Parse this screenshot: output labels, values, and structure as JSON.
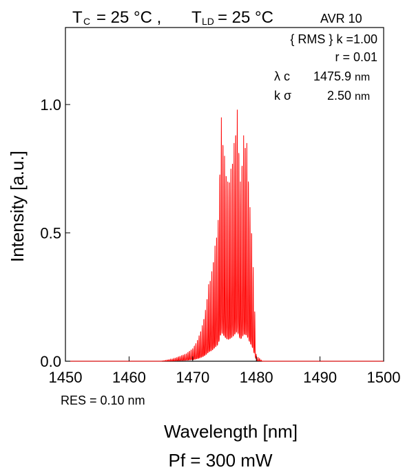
{
  "chart_data": {
    "type": "line",
    "header": {
      "tc_symbol": "T",
      "tc_sub": "C",
      "tc_value": "= 25 °C ,",
      "tld_symbol": "T",
      "tld_sub": "LD",
      "tld_value": "= 25 °C",
      "avr": "AVR 10"
    },
    "annotations": {
      "rms_k": "{ RMS } k =1.00",
      "r": "r = 0.01",
      "lambda_c_label": "λ c",
      "lambda_c_value": "1475.9",
      "lambda_c_unit": "nm",
      "k_sigma_label": "k σ",
      "k_sigma_value": "2.50",
      "k_sigma_unit": "nm",
      "res": "RES = 0.10 nm"
    },
    "xlabel": "Wavelength [nm]",
    "ylabel": "Intensity [a.u.]",
    "footer": "Pf = 300 mW",
    "xlim": [
      1450,
      1500
    ],
    "ylim": [
      0,
      1.3
    ],
    "x_ticks": [
      1450,
      1460,
      1470,
      1480,
      1490,
      1500
    ],
    "x_tick_labels": [
      "1450",
      "1460",
      "1470",
      "1480",
      "1490",
      "1500"
    ],
    "y_ticks": [
      0,
      0.5,
      1.0
    ],
    "y_tick_labels": [
      "0.0",
      "0.5",
      "1.0"
    ],
    "grid": false,
    "line_color": "#ff0000",
    "series": [
      {
        "x": [
          1450,
          1465,
          1466,
          1467,
          1468,
          1469,
          1470,
          1470.5,
          1471,
          1471.5,
          1472,
          1472.5,
          1473,
          1473.5,
          1474,
          1474.5,
          1475,
          1475.5,
          1476,
          1476.5,
          1477,
          1477.5,
          1478,
          1478.5,
          1479,
          1479.3,
          1479.6,
          1480,
          1481,
          1500
        ],
        "y": [
          0,
          0,
          0.005,
          0.01,
          0.02,
          0.03,
          0.05,
          0.07,
          0.1,
          0.14,
          0.2,
          0.3,
          0.35,
          0.45,
          0.55,
          0.95,
          0.8,
          0.7,
          0.75,
          0.85,
          0.98,
          0.7,
          0.88,
          0.85,
          0.6,
          0.5,
          0.3,
          0.02,
          0,
          0
        ]
      }
    ]
  }
}
